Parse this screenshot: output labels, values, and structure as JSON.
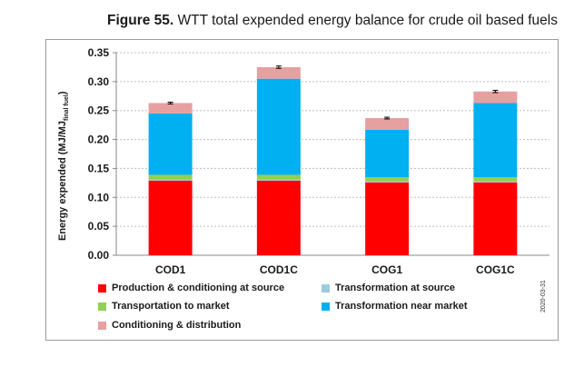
{
  "figure": {
    "label": "Figure 55.",
    "caption": "WTT total expended energy balance for crude oil based fuels",
    "stamp": "2020-03-31"
  },
  "chart_data": {
    "type": "bar",
    "stacked": true,
    "title": "WTT total expended energy balance for crude oil based fuels",
    "xlabel": "",
    "ylabel": "Energy expended (MJ/MJ",
    "ylabel_sub": "final fuel",
    "ylabel_close": ")",
    "ylim": [
      0,
      0.35
    ],
    "yticks": [
      "0.00",
      "0.05",
      "0.10",
      "0.15",
      "0.20",
      "0.25",
      "0.30",
      "0.35"
    ],
    "grid": true,
    "categories": [
      "COD1",
      "COD1C",
      "COG1",
      "COG1C"
    ],
    "series": [
      {
        "name": "Production & conditioning at source",
        "color": "#ff0000",
        "values": [
          0.129,
          0.129,
          0.126,
          0.126
        ]
      },
      {
        "name": "Transformation at source",
        "color": "#9ccbe0",
        "values": [
          0.002,
          0.002,
          0.002,
          0.002
        ]
      },
      {
        "name": "Transportation to market",
        "color": "#92d050",
        "values": [
          0.008,
          0.008,
          0.007,
          0.007
        ]
      },
      {
        "name": "Transformation near market",
        "color": "#00b0f0",
        "values": [
          0.106,
          0.166,
          0.082,
          0.128
        ]
      },
      {
        "name": "Conditioning & distribution",
        "color": "#e6a0a0",
        "values": [
          0.018,
          0.02,
          0.02,
          0.02
        ]
      }
    ],
    "error_bars": [
      0.0015,
      0.002,
      0.0015,
      0.002
    ]
  }
}
